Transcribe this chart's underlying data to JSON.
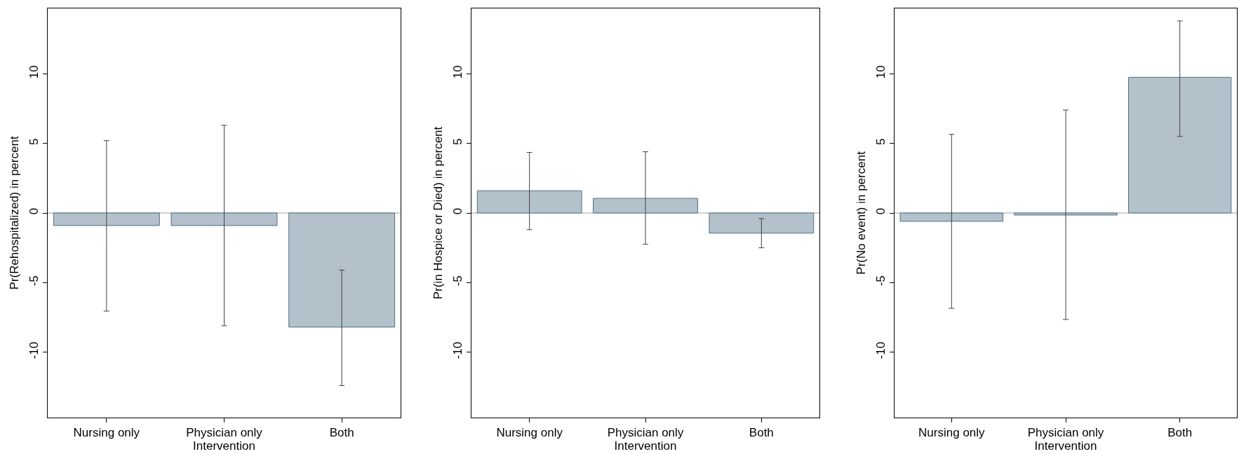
{
  "chart_data": [
    {
      "type": "bar",
      "categories": [
        "Nursing only",
        "Physician only",
        "Both"
      ],
      "values": [
        -0.9,
        -0.9,
        -8.2
      ],
      "errors": [
        [
          -7.05,
          5.2
        ],
        [
          -8.1,
          6.3
        ],
        [
          -12.4,
          -4.1
        ]
      ],
      "color": "#b3c1cb",
      "xlabel": "Intervention",
      "ylabel": "Pr(Rehospitalized) in percent",
      "ylim": [
        -14.7,
        14.7
      ],
      "yticks": [
        -10,
        -5,
        0,
        5,
        10
      ],
      "ref_lines": [
        {
          "axis": "y",
          "value": 0,
          "color": "#a0a0a0"
        }
      ]
    },
    {
      "type": "bar",
      "categories": [
        "Nursing only",
        "Physician only",
        "Both"
      ],
      "values": [
        1.6,
        1.05,
        -1.45
      ],
      "errors": [
        [
          -1.2,
          4.35
        ],
        [
          -2.25,
          4.4
        ],
        [
          -2.5,
          -0.4
        ]
      ],
      "color": "#b3c1cb",
      "xlabel": "Intervention",
      "ylabel": "Pr(in Hospice or Died) in percent",
      "ylim": [
        -14.7,
        14.7
      ],
      "yticks": [
        -10,
        -5,
        0,
        5,
        10
      ],
      "ref_lines": [
        {
          "axis": "y",
          "value": 0,
          "color": "#a0a0a0"
        }
      ]
    },
    {
      "type": "bar",
      "categories": [
        "Nursing only",
        "Physician only",
        "Both"
      ],
      "values": [
        -0.6,
        -0.15,
        9.75
      ],
      "errors": [
        [
          -6.85,
          5.65
        ],
        [
          -7.65,
          7.4
        ],
        [
          5.5,
          13.8
        ]
      ],
      "color": "#b3c1cb",
      "xlabel": "Intervention",
      "ylabel": "Pr(No event) in percent",
      "ylim": [
        -14.7,
        14.7
      ],
      "yticks": [
        -10,
        -5,
        0,
        5,
        10
      ],
      "ref_lines": [
        {
          "axis": "y",
          "value": 0,
          "color": "#a0a0a0"
        }
      ]
    }
  ]
}
